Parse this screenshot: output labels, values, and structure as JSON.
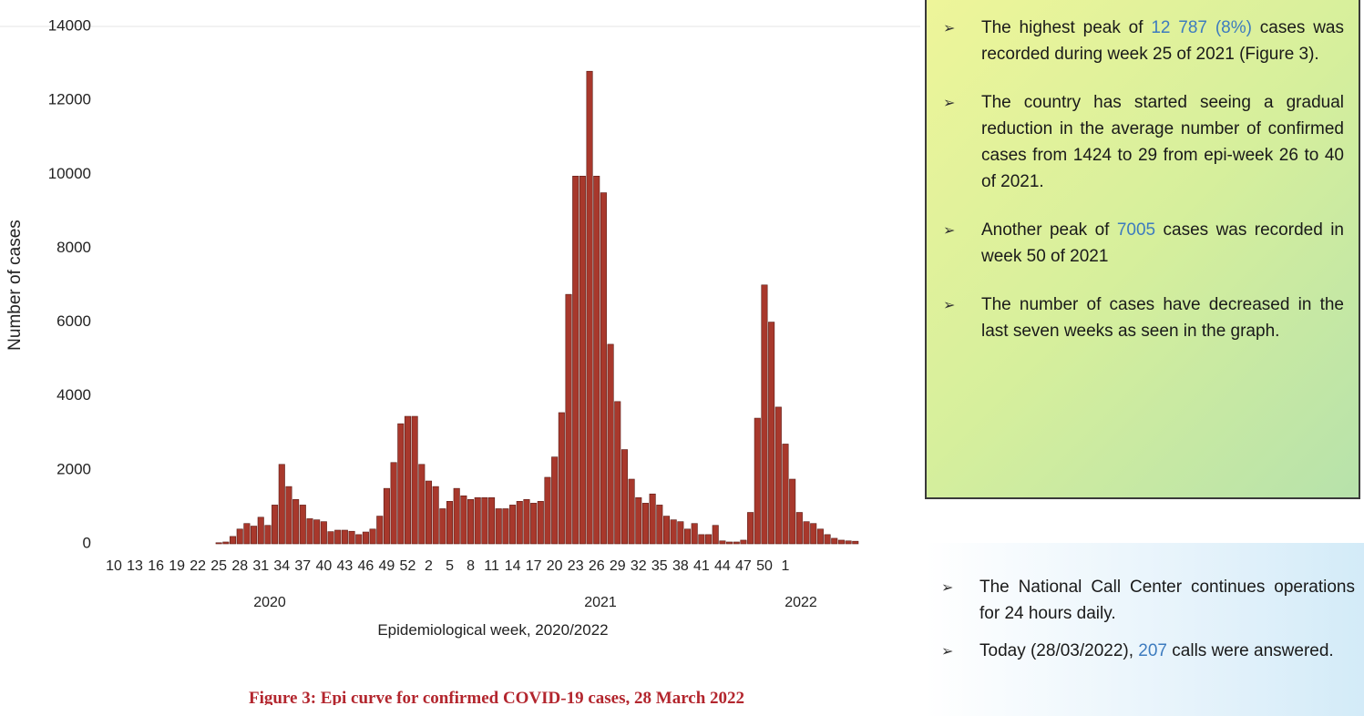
{
  "chart_data": {
    "type": "bar",
    "y_label": "Number of cases",
    "x_label": "Epidemiological week, 2020/2022",
    "caption": "Figure 3: Epi curve for confirmed COVID-19 cases, 28 March 2022",
    "year_labels": [
      "2020",
      "2021",
      "2022"
    ],
    "categories": [
      "10",
      null,
      null,
      "13",
      null,
      null,
      "16",
      null,
      null,
      "19",
      null,
      null,
      "22",
      null,
      null,
      "25",
      null,
      null,
      "28",
      null,
      null,
      "31",
      null,
      null,
      "34",
      null,
      null,
      "37",
      null,
      null,
      "40",
      null,
      null,
      "43",
      null,
      null,
      "46",
      null,
      null,
      "49",
      null,
      null,
      "52",
      null,
      null,
      "2",
      null,
      null,
      "5",
      null,
      null,
      "8",
      null,
      null,
      "11",
      null,
      null,
      "14",
      null,
      null,
      "17",
      null,
      null,
      "20",
      null,
      null,
      "23",
      null,
      null,
      "26",
      null,
      null,
      "29",
      null,
      null,
      "32",
      null,
      null,
      "35",
      null,
      null,
      "38",
      null,
      null,
      "41",
      null,
      null,
      "44",
      null,
      null,
      "47",
      null,
      null,
      "50",
      null,
      null,
      "1",
      null,
      null,
      null,
      null,
      null,
      null,
      null,
      null,
      null,
      null
    ],
    "values": [
      0,
      0,
      0,
      0,
      0,
      0,
      0,
      0,
      0,
      0,
      0,
      0,
      0,
      0,
      0,
      30,
      50,
      200,
      400,
      550,
      480,
      720,
      500,
      1050,
      2150,
      1550,
      1200,
      1050,
      680,
      650,
      600,
      330,
      370,
      370,
      340,
      250,
      320,
      400,
      750,
      1500,
      2200,
      3250,
      3450,
      3450,
      2150,
      1700,
      1550,
      950,
      1150,
      1500,
      1300,
      1200,
      1250,
      1250,
      1250,
      950,
      950,
      1050,
      1150,
      1200,
      1100,
      1150,
      1800,
      2350,
      3550,
      6750,
      9950,
      9950,
      12787,
      9950,
      9500,
      5400,
      3850,
      2550,
      1750,
      1250,
      1100,
      1350,
      1050,
      750,
      650,
      600,
      400,
      550,
      250,
      250,
      500,
      80,
      50,
      50,
      100,
      850,
      3400,
      7005,
      6000,
      3700,
      2700,
      1750,
      850,
      600,
      550,
      400,
      250,
      150,
      100,
      80,
      70
    ],
    "color": "#a8382c",
    "ylim": [
      0,
      14000
    ],
    "yticks": [
      0,
      2000,
      4000,
      6000,
      8000,
      10000,
      12000,
      14000
    ],
    "grid": false
  },
  "panels": [
    {
      "bullets": [
        {
          "before": "The highest peak of ",
          "highlight": "12 787 (8%)",
          "after": " cases was recorded during week 25 of 2021 (Figure 3)."
        },
        {
          "before": "The country has started seeing a gradual reduction in the  average number of confirmed cases from 1424 to 29 from epi-week 26 to 40 of 2021."
        },
        {
          "before": "Another peak of ",
          "highlight": "7005",
          "after": " cases was recorded in week 50 of 2021"
        },
        {
          "before": "The number of cases have decreased in the last seven weeks as seen in the graph."
        }
      ]
    },
    {
      "bullets": [
        {
          "before": "The National Call Center continues operations for 24 hours daily."
        },
        {
          "before": "Today (28/03/2022), ",
          "highlight": "207",
          "after": " calls were answered."
        }
      ]
    }
  ]
}
